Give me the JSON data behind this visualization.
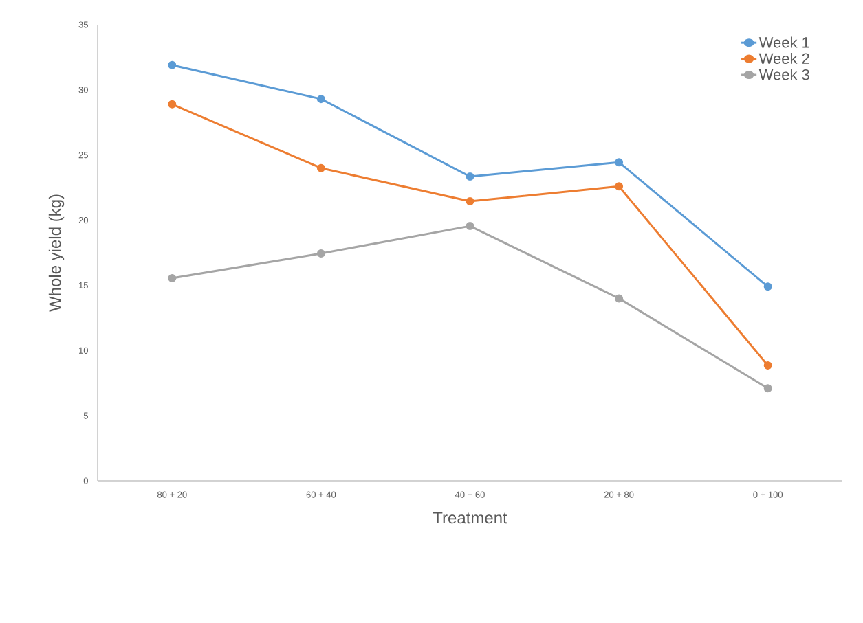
{
  "chart_data": {
    "type": "line",
    "xlabel": "Treatment",
    "ylabel": "Whole yield (kg)",
    "categories": [
      "80 + 20",
      "60 + 40",
      "40 + 60",
      "20 + 80",
      "0 + 100"
    ],
    "series": [
      {
        "name": "Week 1",
        "color": "#5b9bd5",
        "values": [
          31.9,
          29.3,
          23.35,
          24.45,
          14.9
        ]
      },
      {
        "name": "Week 2",
        "color": "#ed7d31",
        "values": [
          28.9,
          24.0,
          21.45,
          22.6,
          8.85
        ]
      },
      {
        "name": "Week 3",
        "color": "#a5a5a5",
        "values": [
          15.55,
          17.45,
          19.55,
          14.0,
          7.1
        ]
      }
    ],
    "ylim": [
      0,
      35
    ],
    "yticks": [
      0,
      5,
      10,
      15,
      20,
      25,
      30,
      35
    ],
    "grid": false,
    "legend": "top right",
    "marker": "circle",
    "line_style": "solid"
  }
}
